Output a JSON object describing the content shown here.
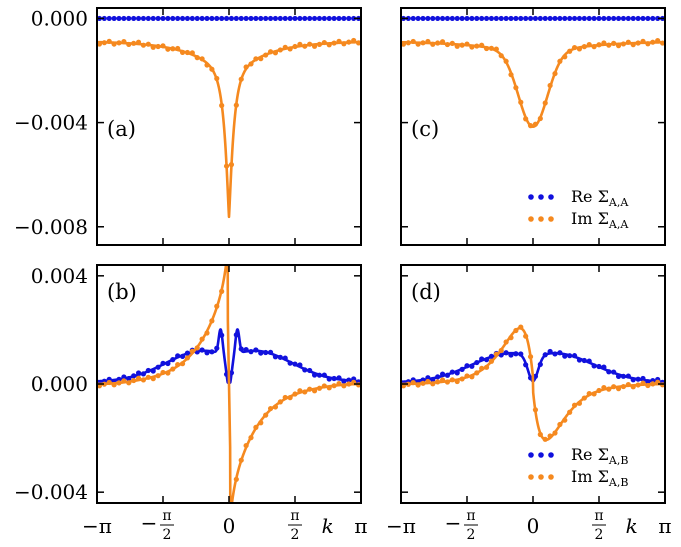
{
  "chart_data": [
    {
      "type": "line",
      "panel": "(a)",
      "xlim": [
        -3.1416,
        3.1416
      ],
      "ylim": [
        -0.0087,
        0.0004
      ],
      "yticks": [
        0.0,
        -0.004,
        -0.008
      ],
      "ytick_labels": [
        "0.000",
        "−0.004",
        "−0.008"
      ],
      "xticks": [
        -3.1416,
        -1.5708,
        0,
        1.5708,
        3.1416
      ],
      "xtick_labels": [],
      "series": [
        {
          "name": "Re ΣA,A",
          "color": "#1111dd",
          "kind": "dots",
          "model": "re_aa"
        },
        {
          "name": "Im ΣA,A",
          "color": "#f5891f",
          "kind": "line+dots",
          "model": "im_aa_sharp"
        }
      ]
    },
    {
      "type": "line",
      "panel": "(c)",
      "xlim": [
        -3.1416,
        3.1416
      ],
      "ylim": [
        -0.0087,
        0.0004
      ],
      "yticks": [
        0.0,
        -0.004,
        -0.008
      ],
      "ytick_labels": [],
      "xticks": [
        -3.1416,
        -1.5708,
        0,
        1.5708,
        3.1416
      ],
      "xtick_labels": [],
      "legend": {
        "position": "lower-right",
        "entries": [
          {
            "prefix": "Re",
            "sym": "Σ",
            "sub": "A,A",
            "color": "#1111dd"
          },
          {
            "prefix": "Im",
            "sym": "Σ",
            "sub": "A,A",
            "color": "#f5891f"
          }
        ]
      },
      "series": [
        {
          "name": "Re ΣA,A",
          "color": "#1111dd",
          "kind": "dots",
          "model": "re_aa"
        },
        {
          "name": "Im ΣA,A",
          "color": "#f5891f",
          "kind": "line+dots",
          "model": "im_aa_smooth"
        }
      ]
    },
    {
      "type": "line",
      "panel": "(b)",
      "xlim": [
        -3.1416,
        3.1416
      ],
      "ylim": [
        -0.0044,
        0.0044
      ],
      "yticks": [
        0.004,
        0.0,
        -0.004
      ],
      "ytick_labels": [
        "0.004",
        "0.000",
        "−0.004"
      ],
      "xticks": [
        -3.1416,
        -1.5708,
        0,
        1.5708,
        3.1416
      ],
      "xtick_labels": [
        "−π",
        "−π/2",
        "0",
        "π/2",
        "π"
      ],
      "xlabel": "k",
      "series": [
        {
          "name": "Re ΣA,B",
          "color": "#1111dd",
          "kind": "line+dots",
          "model": "re_ab_sharp"
        },
        {
          "name": "Im ΣA,B",
          "color": "#f5891f",
          "kind": "line+dots",
          "model": "im_ab_sharp"
        }
      ]
    },
    {
      "type": "line",
      "panel": "(d)",
      "xlim": [
        -3.1416,
        3.1416
      ],
      "ylim": [
        -0.0044,
        0.0044
      ],
      "yticks": [
        0.004,
        0.0,
        -0.004
      ],
      "ytick_labels": [],
      "xticks": [
        -3.1416,
        -1.5708,
        0,
        1.5708,
        3.1416
      ],
      "xtick_labels": [
        "−π",
        "−π/2",
        "0",
        "π/2",
        "π"
      ],
      "xlabel": "k",
      "legend": {
        "position": "lower-right",
        "entries": [
          {
            "prefix": "Re",
            "sym": "Σ",
            "sub": "A,B",
            "color": "#1111dd"
          },
          {
            "prefix": "Im",
            "sym": "Σ",
            "sub": "A,B",
            "color": "#f5891f"
          }
        ]
      },
      "series": [
        {
          "name": "Re ΣA,B",
          "color": "#1111dd",
          "kind": "line+dots",
          "model": "re_ab_smooth"
        },
        {
          "name": "Im ΣA,B",
          "color": "#f5891f",
          "kind": "line+dots",
          "model": "im_ab_smooth"
        }
      ]
    }
  ]
}
